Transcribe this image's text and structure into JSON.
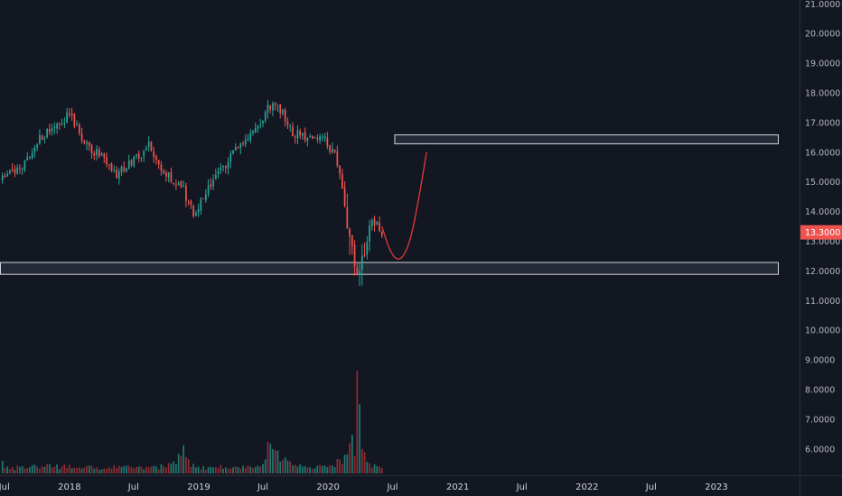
{
  "colors": {
    "background": "#131722",
    "axis_text": "#b2b5be",
    "up": "#26a69a",
    "down": "#ef5350",
    "volume_up": "#1f7a72",
    "volume_down": "#8e2d33",
    "zone_fill": "#2a2e39",
    "zone_stroke": "#d1d4dc",
    "projection": "#e53935",
    "price_tag": "#ef5350"
  },
  "chart_data": {
    "type": "candlestick",
    "interval": "weekly",
    "price_axis": {
      "ticks": [
        "21.0000",
        "20.0000",
        "19.0000",
        "18.0000",
        "17.0000",
        "16.0000",
        "15.0000",
        "14.0000",
        "13.0000",
        "12.0000",
        "11.0000",
        "10.0000",
        "9.0000",
        "8.0000",
        "7.0000",
        "6.0000"
      ],
      "range": [
        5.6,
        21.1
      ]
    },
    "time_axis": {
      "labels": [
        "Jul",
        "2018",
        "Jul",
        "2019",
        "Jul",
        "2020",
        "Jul",
        "2021",
        "Jul",
        "2022",
        "Jul",
        "2023"
      ],
      "label_dates": [
        "2017-07",
        "2018-01",
        "2018-07",
        "2019-01",
        "2019-07",
        "2020-01",
        "2020-07",
        "2021-01",
        "2021-07",
        "2022-01",
        "2022-07",
        "2023-01"
      ],
      "range": [
        "2017-06-19",
        "2023-06-26"
      ]
    },
    "last_price": "13.3000",
    "last_price_value": 13.3,
    "anchors": [
      [
        "2017-06-26",
        15.1
      ],
      [
        "2017-08-21",
        15.5
      ],
      [
        "2017-10-02",
        16.4
      ],
      [
        "2017-11-20",
        16.8
      ],
      [
        "2018-01-01",
        17.3
      ],
      [
        "2018-02-19",
        16.2
      ],
      [
        "2018-04-02",
        15.9
      ],
      [
        "2018-05-14",
        15.3
      ],
      [
        "2018-06-25",
        15.6
      ],
      [
        "2018-08-13",
        16.2
      ],
      [
        "2018-09-17",
        15.3
      ],
      [
        "2018-11-12",
        14.9
      ],
      [
        "2018-12-17",
        13.9
      ],
      [
        "2019-01-28",
        14.8
      ],
      [
        "2019-04-08",
        15.9
      ],
      [
        "2019-06-17",
        16.9
      ],
      [
        "2019-07-22",
        17.6
      ],
      [
        "2019-08-26",
        17.4
      ],
      [
        "2019-09-23",
        16.6
      ],
      [
        "2019-11-04",
        16.5
      ],
      [
        "2019-12-16",
        16.6
      ],
      [
        "2020-01-27",
        15.7
      ],
      [
        "2020-03-02",
        13.4
      ],
      [
        "2020-03-23",
        11.9
      ],
      [
        "2020-04-20",
        13.3
      ],
      [
        "2020-05-11",
        13.7
      ],
      [
        "2020-06-01",
        13.3
      ]
    ],
    "volume": [
      [
        "2017-06-19",
        0.45
      ],
      [
        "2017-07-10",
        0.2
      ],
      [
        "2017-09-04",
        0.22
      ],
      [
        "2017-11-06",
        0.25
      ],
      [
        "2018-01-08",
        0.23
      ],
      [
        "2018-03-19",
        0.2
      ],
      [
        "2018-06-04",
        0.22
      ],
      [
        "2018-08-27",
        0.2
      ],
      [
        "2018-10-15",
        0.3
      ],
      [
        "2018-11-19",
        0.95
      ],
      [
        "2018-12-10",
        0.28
      ],
      [
        "2019-01-28",
        0.2
      ],
      [
        "2019-04-22",
        0.25
      ],
      [
        "2019-06-17",
        0.25
      ],
      [
        "2019-07-22",
        1.0
      ],
      [
        "2019-09-23",
        0.3
      ],
      [
        "2019-11-04",
        0.22
      ],
      [
        "2020-01-13",
        0.25
      ],
      [
        "2020-02-17",
        0.6
      ],
      [
        "2020-03-09",
        1.3
      ],
      [
        "2020-03-16",
        1.05
      ],
      [
        "2020-03-23",
        3.45
      ],
      [
        "2020-04-06",
        0.95
      ],
      [
        "2020-05-04",
        0.25
      ],
      [
        "2020-06-01",
        0.18
      ]
    ],
    "resistance_zone": {
      "low": 16.3,
      "high": 16.6,
      "start": "2020-07-06",
      "end": "2023-06-26"
    },
    "support_zone": {
      "low": 11.9,
      "high": 12.3,
      "start": "2017-06-19",
      "end": "2023-06-26"
    },
    "projection_path": [
      [
        "2020-06-01",
        13.5
      ],
      [
        "2020-06-22",
        12.7
      ],
      [
        "2020-07-13",
        12.35
      ],
      [
        "2020-08-03",
        12.5
      ],
      [
        "2020-08-24",
        13.2
      ],
      [
        "2020-09-14",
        14.5
      ],
      [
        "2020-10-05",
        16.0
      ]
    ]
  }
}
